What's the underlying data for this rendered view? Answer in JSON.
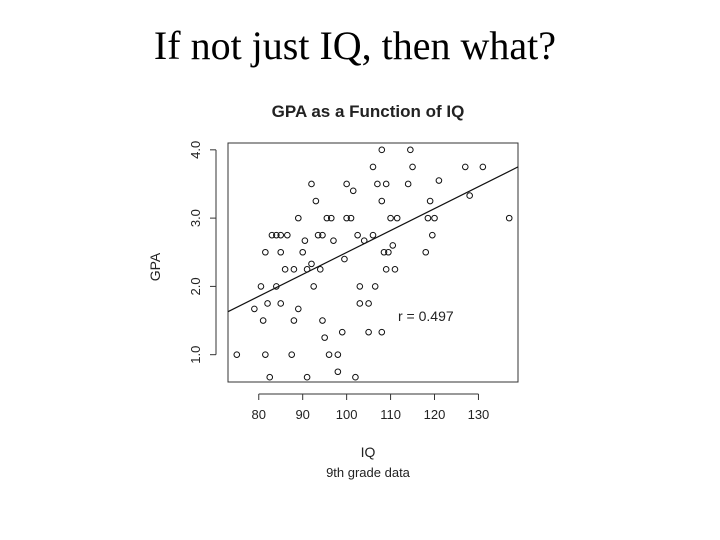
{
  "slide": {
    "title": "If not just IQ, then what?"
  },
  "chart_data": {
    "type": "scatter",
    "title": "GPA as a Function of IQ",
    "xlabel": "IQ",
    "ylabel": "GPA",
    "caption": "9th grade data",
    "annotation": "r =  0.497",
    "xlim": [
      73,
      139
    ],
    "ylim": [
      0.6,
      4.1
    ],
    "xticks": [
      80,
      90,
      100,
      110,
      120,
      130
    ],
    "yticks": [
      1.0,
      2.0,
      3.0,
      4.0
    ],
    "ytick_labels": [
      "1.0",
      "2.0",
      "3.0",
      "4.0"
    ],
    "regression_line": {
      "x": [
        73,
        139
      ],
      "y": [
        1.63,
        3.75
      ]
    },
    "points": [
      {
        "x": 75,
        "y": 1.0
      },
      {
        "x": 79,
        "y": 1.67
      },
      {
        "x": 80.5,
        "y": 2.0
      },
      {
        "x": 81,
        "y": 1.5
      },
      {
        "x": 81.5,
        "y": 1.0
      },
      {
        "x": 81.5,
        "y": 2.5
      },
      {
        "x": 82,
        "y": 1.75
      },
      {
        "x": 82.5,
        "y": 0.67
      },
      {
        "x": 83,
        "y": 2.75
      },
      {
        "x": 84,
        "y": 2.0
      },
      {
        "x": 84,
        "y": 2.75
      },
      {
        "x": 85,
        "y": 2.75
      },
      {
        "x": 85,
        "y": 2.5
      },
      {
        "x": 85,
        "y": 1.75
      },
      {
        "x": 86,
        "y": 2.25
      },
      {
        "x": 86.5,
        "y": 2.75
      },
      {
        "x": 87.5,
        "y": 1.0
      },
      {
        "x": 88,
        "y": 1.5
      },
      {
        "x": 88,
        "y": 2.25
      },
      {
        "x": 89,
        "y": 1.67
      },
      {
        "x": 89,
        "y": 3.0
      },
      {
        "x": 90,
        "y": 2.5
      },
      {
        "x": 90.5,
        "y": 2.67
      },
      {
        "x": 91,
        "y": 2.25
      },
      {
        "x": 91,
        "y": 0.67
      },
      {
        "x": 92,
        "y": 2.33
      },
      {
        "x": 92,
        "y": 3.5
      },
      {
        "x": 92.5,
        "y": 2.0
      },
      {
        "x": 93,
        "y": 3.25
      },
      {
        "x": 93.5,
        "y": 2.75
      },
      {
        "x": 94,
        "y": 2.25
      },
      {
        "x": 94.5,
        "y": 2.75
      },
      {
        "x": 94.5,
        "y": 1.5
      },
      {
        "x": 95,
        "y": 1.25
      },
      {
        "x": 95.5,
        "y": 3.0
      },
      {
        "x": 96,
        "y": 1.0
      },
      {
        "x": 96.5,
        "y": 3.0
      },
      {
        "x": 97,
        "y": 2.67
      },
      {
        "x": 98,
        "y": 1.0
      },
      {
        "x": 98,
        "y": 0.75
      },
      {
        "x": 99,
        "y": 1.33
      },
      {
        "x": 99.5,
        "y": 2.4
      },
      {
        "x": 100,
        "y": 3.5
      },
      {
        "x": 100,
        "y": 3.0
      },
      {
        "x": 101,
        "y": 3.0
      },
      {
        "x": 101.5,
        "y": 3.4
      },
      {
        "x": 102,
        "y": 0.67
      },
      {
        "x": 102.5,
        "y": 2.75
      },
      {
        "x": 103,
        "y": 2.0
      },
      {
        "x": 103,
        "y": 1.75
      },
      {
        "x": 104,
        "y": 2.67
      },
      {
        "x": 105,
        "y": 1.75
      },
      {
        "x": 105,
        "y": 1.33
      },
      {
        "x": 106,
        "y": 3.75
      },
      {
        "x": 106,
        "y": 2.75
      },
      {
        "x": 106.5,
        "y": 2.0
      },
      {
        "x": 107,
        "y": 3.5
      },
      {
        "x": 108,
        "y": 4.0
      },
      {
        "x": 108,
        "y": 3.25
      },
      {
        "x": 108,
        "y": 1.33
      },
      {
        "x": 108.5,
        "y": 2.5
      },
      {
        "x": 109,
        "y": 3.5
      },
      {
        "x": 109,
        "y": 2.25
      },
      {
        "x": 109.5,
        "y": 2.5
      },
      {
        "x": 110,
        "y": 3.0
      },
      {
        "x": 110.5,
        "y": 2.6
      },
      {
        "x": 111,
        "y": 2.25
      },
      {
        "x": 111.5,
        "y": 3.0
      },
      {
        "x": 114,
        "y": 3.5
      },
      {
        "x": 114.5,
        "y": 4.0
      },
      {
        "x": 115,
        "y": 3.75
      },
      {
        "x": 118,
        "y": 2.5
      },
      {
        "x": 118.5,
        "y": 3.0
      },
      {
        "x": 119,
        "y": 3.25
      },
      {
        "x": 119.5,
        "y": 2.75
      },
      {
        "x": 120,
        "y": 3.0
      },
      {
        "x": 121,
        "y": 3.55
      },
      {
        "x": 127,
        "y": 3.75
      },
      {
        "x": 128,
        "y": 3.33
      },
      {
        "x": 131,
        "y": 3.75
      },
      {
        "x": 137,
        "y": 3.0
      }
    ]
  }
}
